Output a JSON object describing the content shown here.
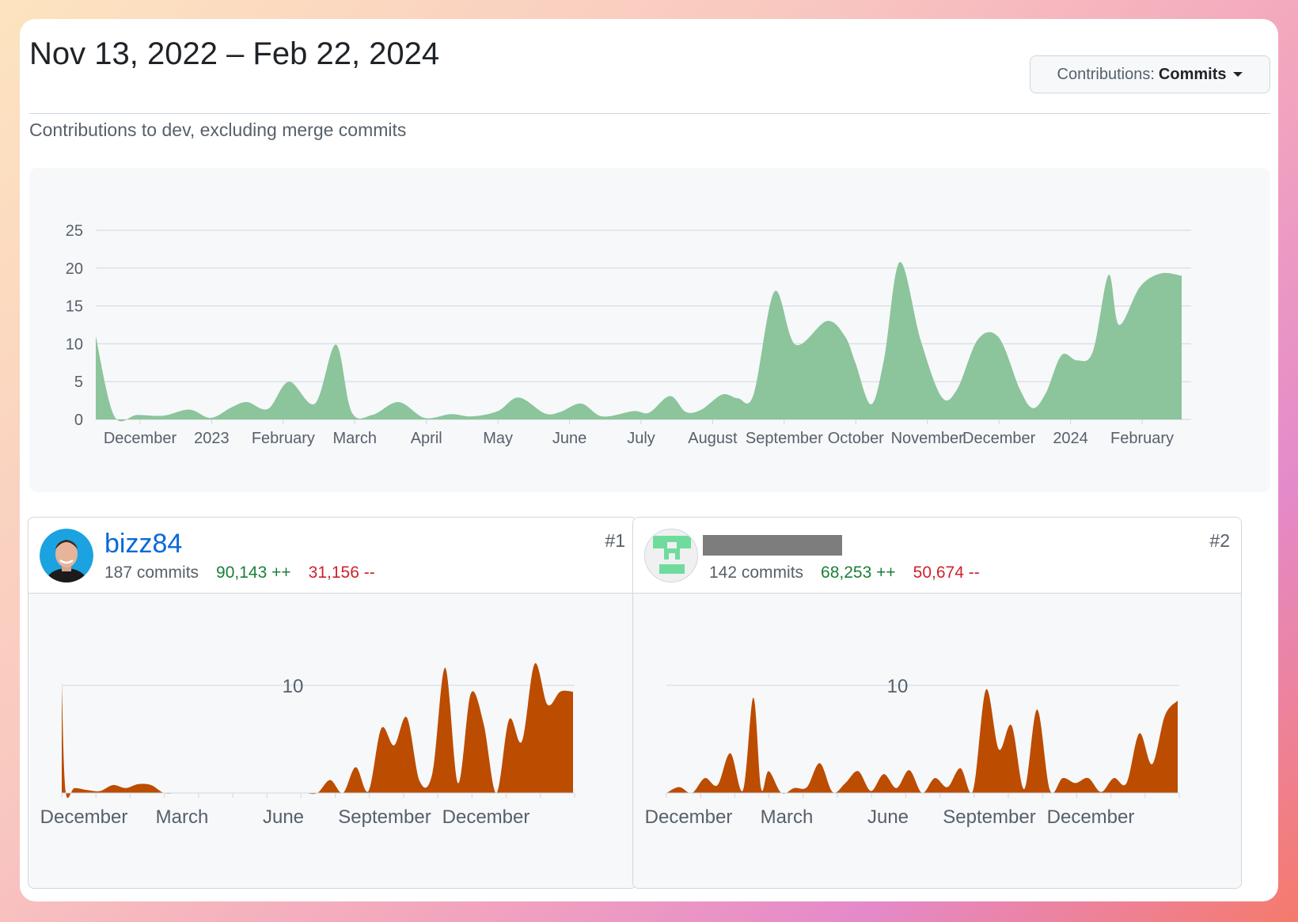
{
  "header": {
    "date_range": "Nov 13, 2022 – Feb 22, 2024",
    "contributions_label": "Contributions:",
    "contributions_value": "Commits"
  },
  "subtitle": "Contributions to dev, excluding merge commits",
  "colors": {
    "main_area": "#8cc49b",
    "user_area": "#bc4c00",
    "link": "#0969da",
    "additions": "#1a7f37",
    "deletions": "#cf222e"
  },
  "chart_data": [
    {
      "type": "area",
      "y_ticks": [
        0,
        5,
        10,
        15,
        20,
        25
      ],
      "ylim": [
        0,
        25
      ],
      "x_tick_labels": [
        "December",
        "2023",
        "February",
        "March",
        "April",
        "May",
        "June",
        "July",
        "August",
        "September",
        "October",
        "November",
        "December",
        "2024",
        "February"
      ],
      "grid": true,
      "series": [
        {
          "x": [
            0,
            0.35,
            0.8,
            1.3,
            1.8,
            2.2,
            2.6,
            2.9,
            3.3,
            3.7,
            4.2,
            4.6,
            4.9,
            5.3,
            5.8,
            6.3,
            6.8,
            7.2,
            7.7,
            8.1,
            8.6,
            8.9,
            9.3,
            9.7,
            10.3,
            10.6,
            11.0,
            11.3,
            11.6,
            12.0,
            12.3,
            12.6,
            13.0,
            13.4,
            14.0,
            14.35,
            14.55,
            14.85,
            15.1,
            15.4,
            15.8,
            16.2,
            16.5,
            16.9,
            17.3,
            17.7,
            17.95,
            18.2,
            18.5,
            18.8,
            19.1,
            19.4,
            19.6,
            20.0,
            20.4,
            20.8
          ],
          "values": [
            11,
            0.5,
            0.6,
            0.5,
            1.3,
            0.2,
            1.6,
            2.3,
            1.4,
            5.0,
            2.1,
            9.9,
            1.0,
            0.6,
            2.3,
            0.2,
            0.7,
            0.4,
            1.1,
            2.9,
            0.8,
            1.0,
            2.1,
            0.4,
            1.1,
            0.9,
            3.1,
            1.0,
            1.3,
            3.3,
            2.8,
            3.3,
            16.9,
            9.9,
            13.0,
            11.0,
            7.5,
            2.0,
            8.0,
            20.8,
            10.5,
            3.0,
            4.0,
            10.6,
            10.8,
            4.0,
            1.5,
            3.5,
            8.5,
            7.8,
            9.0,
            19.1,
            12.5,
            17.5,
            19.3,
            19.0
          ]
        }
      ]
    },
    {
      "type": "area",
      "y_ticks": [
        10
      ],
      "x_tick_labels": [
        "December",
        "March",
        "June",
        "September",
        "December"
      ],
      "series": [
        {
          "x": [
            0,
            0.15,
            0.5,
            1,
            1.5,
            2,
            2.5,
            3,
            3.5,
            4,
            4.5,
            5,
            5.5,
            6,
            6.5,
            7,
            7.5,
            8,
            8.5,
            9,
            9.5,
            10,
            10.5,
            11,
            11.5,
            12,
            12.5,
            13,
            13.5,
            14,
            14.5,
            15,
            15.5,
            16,
            16.5,
            17,
            17.5,
            18,
            18.5,
            19,
            19.5,
            20
          ],
          "values": [
            11,
            0.2,
            0.5,
            0.3,
            0.2,
            0.8,
            0.5,
            0.9,
            0.8,
            0,
            0,
            0,
            0,
            0,
            0,
            0,
            0,
            0,
            0,
            0,
            0,
            0,
            1.3,
            0,
            2.6,
            0.2,
            6.5,
            4.8,
            7.6,
            1.2,
            2.0,
            12.6,
            1.0,
            10.0,
            7.0,
            0,
            7.4,
            5.2,
            13.0,
            8.9,
            10.2,
            10.2
          ]
        }
      ]
    },
    {
      "type": "area",
      "y_ticks": [
        10
      ],
      "x_tick_labels": [
        "December",
        "March",
        "June",
        "September",
        "December"
      ],
      "series": [
        {
          "x": [
            0,
            0.5,
            1,
            1.5,
            2,
            2.5,
            3,
            3.4,
            3.7,
            4,
            4.5,
            5,
            5.5,
            6,
            6.5,
            7,
            7.5,
            8,
            8.5,
            9,
            9.5,
            10,
            10.5,
            11,
            11.5,
            12,
            12.5,
            13,
            13.5,
            14,
            14.5,
            15,
            15.5,
            16,
            16.5,
            17,
            17.5,
            18,
            18.5,
            19,
            19.5,
            20
          ],
          "values": [
            0,
            0.6,
            0,
            1.5,
            0.8,
            4.0,
            0.3,
            9.6,
            0.5,
            2.2,
            0,
            0.5,
            0.6,
            3.0,
            0.1,
            1.0,
            2.2,
            0.2,
            1.9,
            0.5,
            2.3,
            0,
            1.5,
            0.6,
            2.5,
            0.3,
            10.4,
            4.4,
            6.8,
            0.4,
            8.4,
            0.3,
            1.5,
            1.0,
            1.5,
            0.1,
            1.5,
            1.0,
            6.0,
            2.9,
            7.8,
            9.3
          ]
        }
      ]
    }
  ],
  "contributors": [
    {
      "username": "bizz84",
      "commits": "187 commits",
      "additions": "90,143 ++",
      "deletions": "31,156 --",
      "rank": "#1"
    },
    {
      "username": "",
      "commits": "142 commits",
      "additions": "68,253 ++",
      "deletions": "50,674 --",
      "rank": "#2"
    }
  ]
}
